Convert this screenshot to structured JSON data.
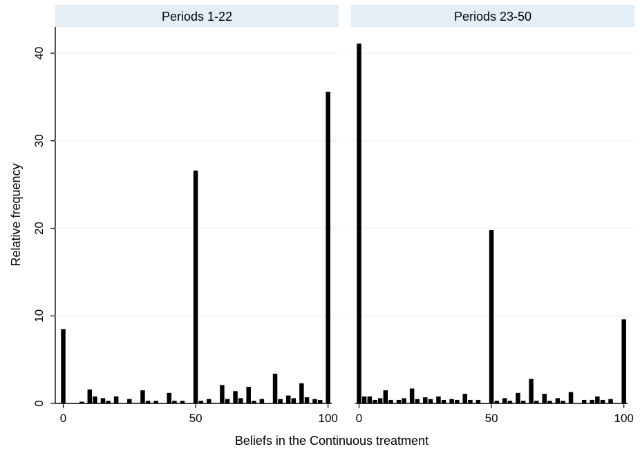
{
  "chart_data": {
    "type": "bar",
    "xlabel": "Beliefs in the Continuous treatment",
    "ylabel": "Relative frequency",
    "xlim": [
      -3,
      104
    ],
    "ylim": [
      0,
      43
    ],
    "xticks": [
      0,
      50,
      100
    ],
    "yticks": [
      0,
      10,
      20,
      30,
      40
    ],
    "grid": true,
    "colors": {
      "bar": "#000000",
      "strip": "#e4eef6",
      "grid": "#eef2f6",
      "axis": "#000000"
    },
    "panels": [
      {
        "title": "Periods 1-22",
        "x": [
          0,
          7,
          10,
          12,
          15,
          17,
          20,
          25,
          30,
          32,
          35,
          40,
          42,
          45,
          50,
          52,
          55,
          60,
          62,
          65,
          67,
          70,
          72,
          75,
          80,
          82,
          85,
          87,
          90,
          92,
          95,
          97,
          100
        ],
        "values": [
          8.5,
          0.2,
          1.6,
          0.8,
          0.6,
          0.3,
          0.8,
          0.5,
          1.5,
          0.3,
          0.3,
          1.2,
          0.3,
          0.3,
          26.6,
          0.3,
          0.5,
          2.1,
          0.5,
          1.4,
          0.6,
          1.9,
          0.3,
          0.5,
          3.4,
          0.5,
          0.9,
          0.6,
          2.3,
          0.7,
          0.5,
          0.4,
          35.6
        ]
      },
      {
        "title": "Periods 23-50",
        "x": [
          0,
          2,
          4,
          6,
          8,
          10,
          12,
          15,
          17,
          20,
          22,
          25,
          27,
          30,
          32,
          35,
          37,
          40,
          42,
          45,
          50,
          52,
          55,
          57,
          60,
          62,
          65,
          67,
          70,
          72,
          75,
          77,
          80,
          85,
          88,
          90,
          92,
          95,
          100
        ],
        "values": [
          41.1,
          0.8,
          0.8,
          0.4,
          0.6,
          1.5,
          0.4,
          0.4,
          0.6,
          1.7,
          0.5,
          0.7,
          0.5,
          0.8,
          0.4,
          0.5,
          0.4,
          1.1,
          0.4,
          0.4,
          19.8,
          0.3,
          0.6,
          0.3,
          1.2,
          0.3,
          2.8,
          0.3,
          1.1,
          0.3,
          0.6,
          0.3,
          1.3,
          0.4,
          0.4,
          0.8,
          0.4,
          0.5,
          9.6
        ]
      }
    ]
  }
}
